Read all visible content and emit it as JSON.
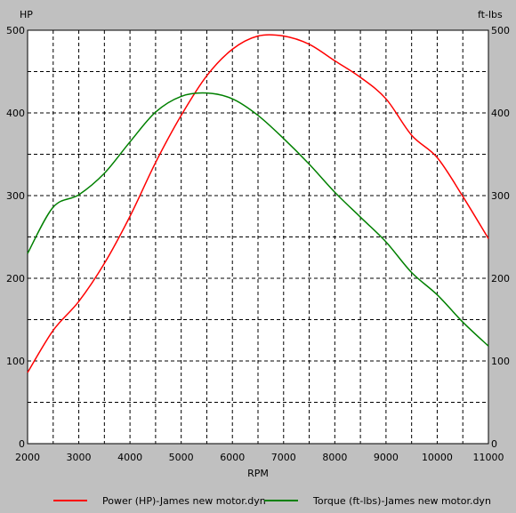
{
  "chart_data": {
    "type": "line",
    "xlabel": "RPM",
    "ylabel_left": "HP",
    "ylabel_right": "ft-lbs",
    "xlim": [
      2000,
      11000
    ],
    "ylim": [
      0,
      500
    ],
    "x_ticks": [
      2000,
      3000,
      4000,
      5000,
      6000,
      7000,
      8000,
      9000,
      10000,
      11000
    ],
    "y_ticks": [
      0,
      100,
      200,
      300,
      400,
      500
    ],
    "grid": true,
    "legend_position": "bottom",
    "series": [
      {
        "name": "Power (HP)-James new motor.dyn",
        "color": "#ff0000",
        "x": [
          2000,
          2500,
          3000,
          3500,
          4000,
          4500,
          5000,
          5500,
          6000,
          6500,
          7000,
          7500,
          8000,
          8500,
          9000,
          9500,
          10000,
          10500,
          11000
        ],
        "y": [
          86,
          137,
          172,
          218,
          275,
          340,
          397,
          445,
          477,
          493,
          493,
          483,
          463,
          443,
          417,
          373,
          346,
          299,
          248
        ]
      },
      {
        "name": "Torque (ft-lbs)-James new motor.dyn",
        "color": "#008000",
        "x": [
          2000,
          2500,
          3000,
          3500,
          4000,
          4500,
          5000,
          5500,
          6000,
          6500,
          7000,
          7500,
          8000,
          8500,
          9000,
          9500,
          10000,
          10500,
          11000
        ],
        "y": [
          230,
          286,
          301,
          327,
          365,
          401,
          420,
          424,
          417,
          397,
          369,
          338,
          304,
          274,
          244,
          207,
          180,
          147,
          118
        ]
      }
    ]
  }
}
